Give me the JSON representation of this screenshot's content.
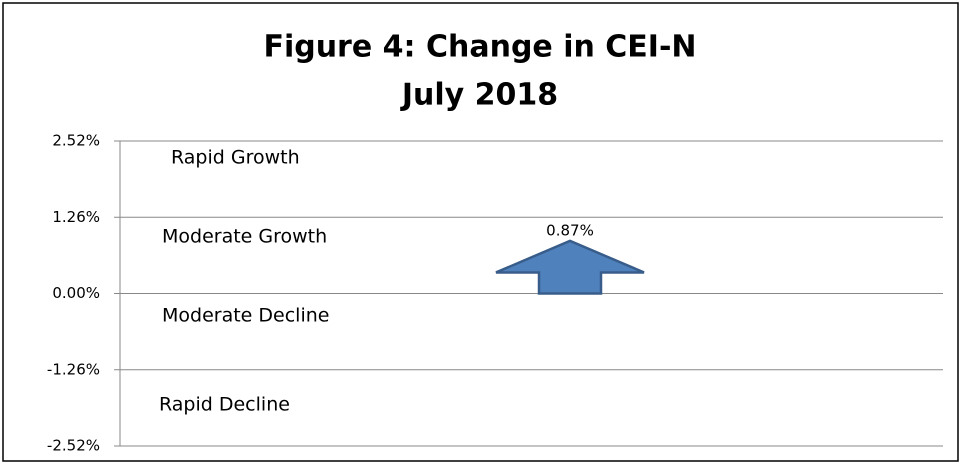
{
  "chart_data": {
    "type": "arrow",
    "title": [
      "Figure 4:  Change in CEI-N",
      "July 2018"
    ],
    "values": [
      0.87
    ],
    "value_labels": [
      "0.87%"
    ],
    "color": "#4f81bd",
    "ylim": [
      -2.52,
      2.52
    ],
    "yticks": [
      {
        "value": 2.52,
        "label": "2.52%"
      },
      {
        "value": 1.26,
        "label": "1.26%"
      },
      {
        "value": 0,
        "label": "0.00%"
      },
      {
        "value": -1.26,
        "label": "-1.26%"
      },
      {
        "value": -2.52,
        "label": "-2.52%"
      }
    ],
    "grid": true,
    "annotations": [
      "Rapid Growth",
      "Moderate Growth",
      "Moderate Decline",
      "Rapid Decline"
    ]
  }
}
